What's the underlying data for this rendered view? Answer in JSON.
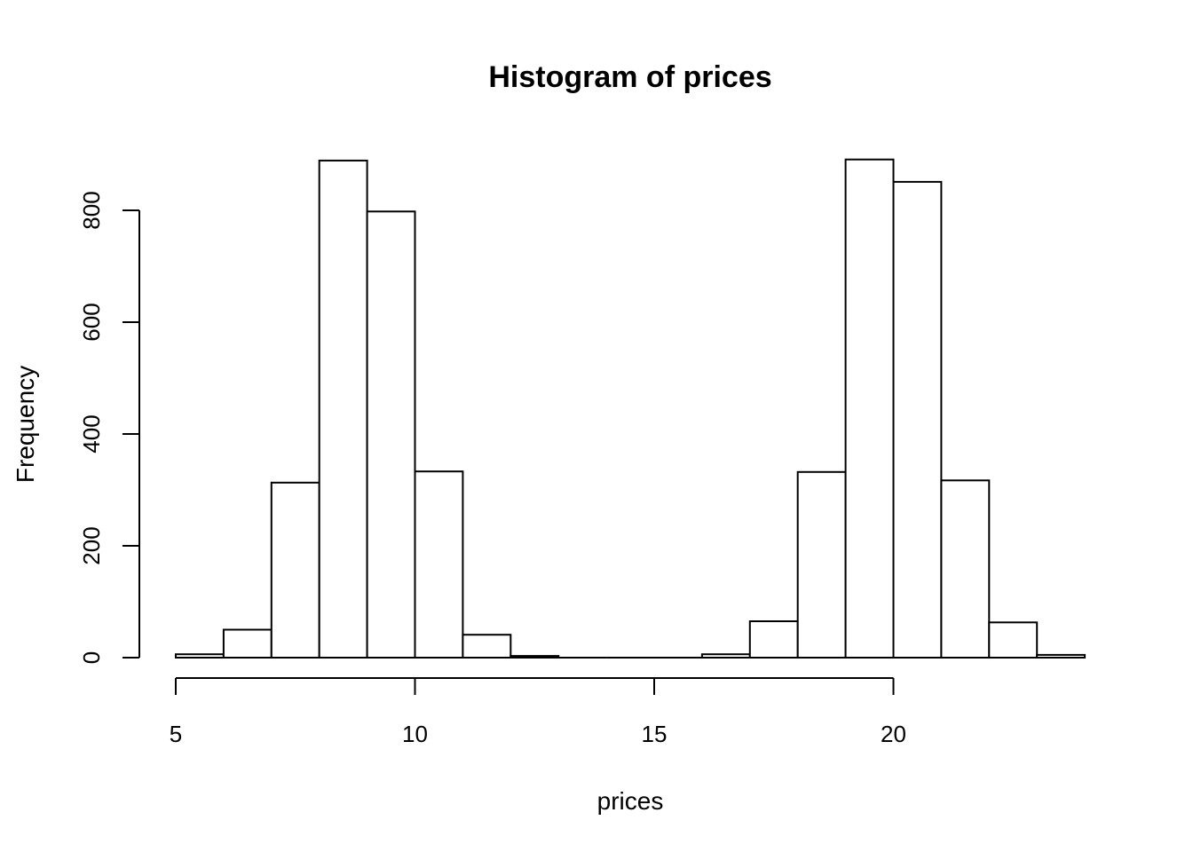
{
  "page": {
    "background": "#ffffff"
  },
  "chart_data": {
    "type": "bar",
    "subtype": "histogram",
    "title": "Histogram of prices",
    "xlabel": "prices",
    "ylabel": "Frequency",
    "bin_edges": [
      5,
      6,
      7,
      8,
      9,
      10,
      11,
      12,
      13,
      14,
      15,
      16,
      17,
      18,
      19,
      20,
      21,
      22,
      23,
      24
    ],
    "counts": [
      6,
      50,
      313,
      889,
      798,
      333,
      41,
      3,
      0,
      0,
      0,
      6,
      65,
      332,
      891,
      851,
      317,
      63,
      5
    ],
    "x_ticks": [
      5,
      10,
      15,
      20
    ],
    "y_ticks": [
      0,
      200,
      400,
      600,
      800
    ],
    "xlim": [
      5,
      24
    ],
    "ylim": [
      0,
      891
    ],
    "grid": false,
    "legend": null,
    "bar_fill": "#ffffff",
    "bar_stroke": "#000000",
    "axis_color": "#000000",
    "text_color": "#000000"
  }
}
